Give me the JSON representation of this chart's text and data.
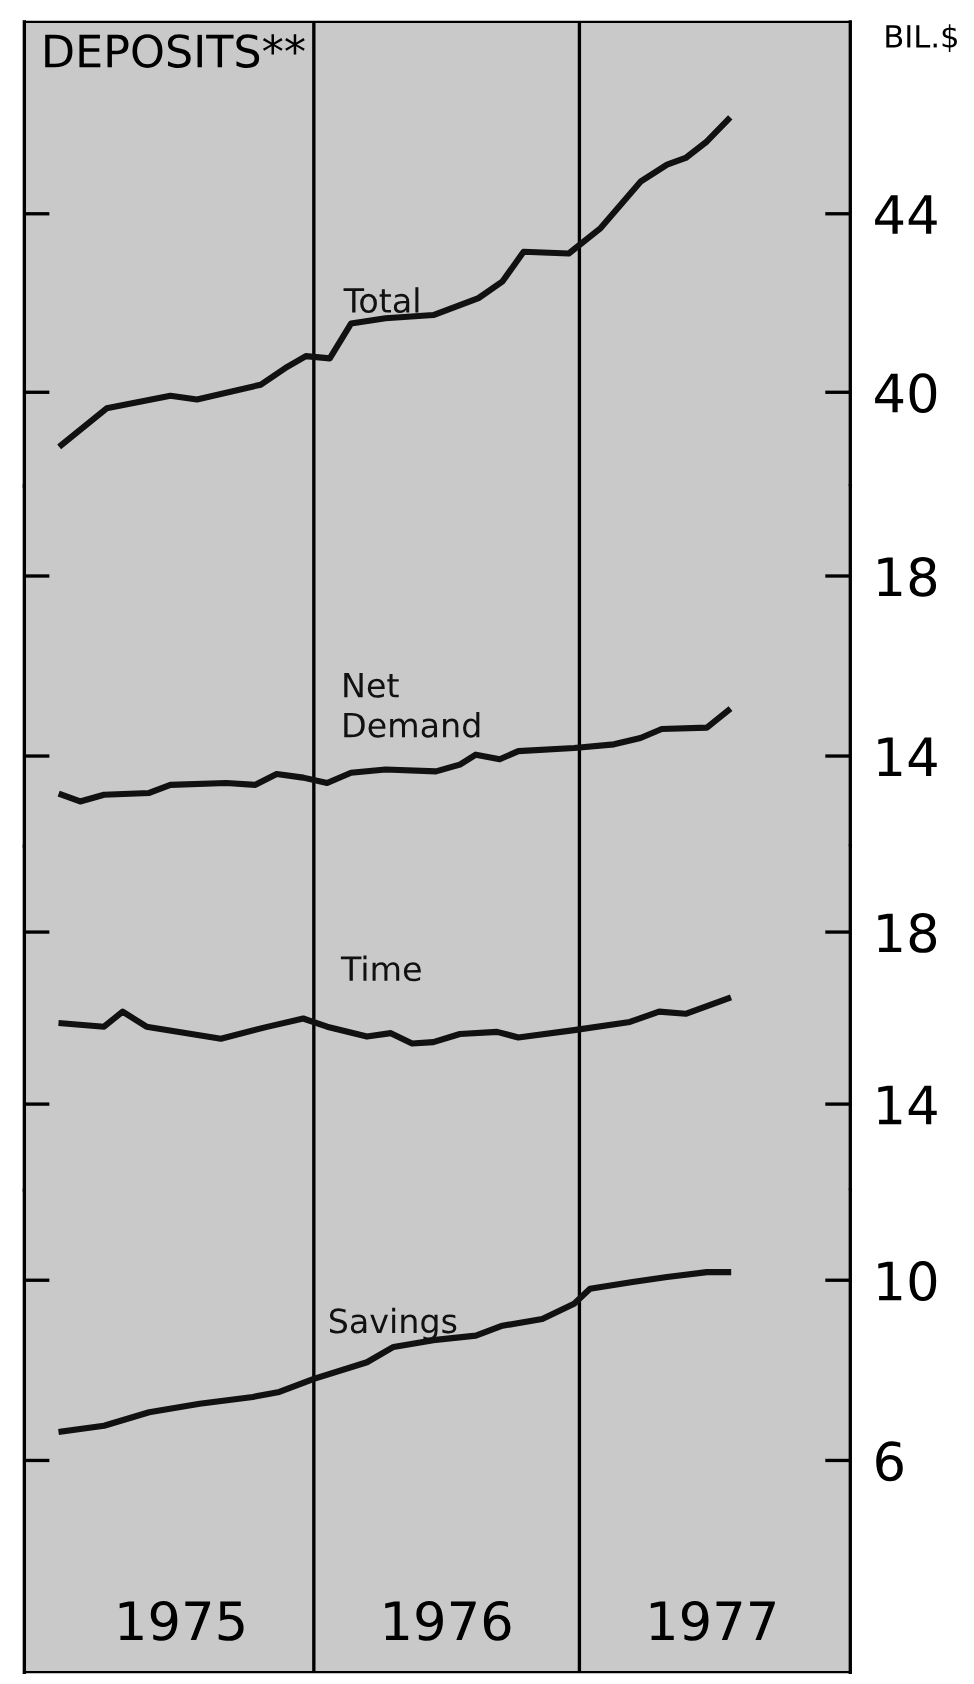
{
  "chart_data": [
    {
      "type": "line",
      "title": "DEPOSITS**",
      "ylabel": "BIL.$",
      "xlim": [
        1974.91,
        1978.02
      ],
      "ylim": [
        37.9,
        48.3
      ],
      "yticks": [
        40,
        44
      ],
      "tick_labels": "y",
      "grid": false,
      "legend": false,
      "marker": "none",
      "line_style": "solid",
      "ref_lines": [
        {
          "axis": "x",
          "value": 1976,
          "color": "#000000"
        },
        {
          "axis": "x",
          "value": 1977,
          "color": "#000000"
        }
      ],
      "series": [
        {
          "name": "Total",
          "color": "#111111",
          "x": [
            1975.05,
            1975.22,
            1975.46,
            1975.56,
            1975.8,
            1975.9,
            1975.97,
            1976.06,
            1976.14,
            1976.27,
            1976.45,
            1976.62,
            1976.71,
            1976.79,
            1976.96,
            1977.08,
            1977.23,
            1977.33,
            1977.4,
            1977.48,
            1977.56
          ],
          "values": [
            38.82,
            39.64,
            39.92,
            39.84,
            40.17,
            40.57,
            40.81,
            40.76,
            41.54,
            41.66,
            41.73,
            42.11,
            42.48,
            43.15,
            43.11,
            43.68,
            44.72,
            45.1,
            45.25,
            45.62,
            46.11
          ]
        }
      ]
    },
    {
      "type": "line",
      "xlim": [
        1974.91,
        1978.02
      ],
      "ylim": [
        12,
        20
      ],
      "yticks": [
        14,
        18
      ],
      "tick_labels": "y",
      "grid": false,
      "legend": false,
      "marker": "none",
      "line_style": "solid",
      "ref_lines": [
        {
          "axis": "x",
          "value": 1976,
          "color": "#000000"
        },
        {
          "axis": "x",
          "value": 1977,
          "color": "#000000"
        }
      ],
      "series": [
        {
          "name": "Net\nDemand",
          "color": "#111111",
          "x": [
            1975.05,
            1975.12,
            1975.21,
            1975.38,
            1975.46,
            1975.67,
            1975.78,
            1975.86,
            1975.96,
            1976.05,
            1976.14,
            1976.27,
            1976.46,
            1976.55,
            1976.61,
            1976.7,
            1976.77,
            1976.98,
            1977.13,
            1977.23,
            1977.31,
            1977.48,
            1977.56
          ],
          "values": [
            13.14,
            12.99,
            13.14,
            13.18,
            13.36,
            13.4,
            13.36,
            13.6,
            13.52,
            13.4,
            13.63,
            13.7,
            13.66,
            13.81,
            14.03,
            13.93,
            14.11,
            14.18,
            14.26,
            14.4,
            14.6,
            14.63,
            15.01
          ]
        }
      ]
    },
    {
      "type": "line",
      "xlim": [
        1974.91,
        1978.02
      ],
      "ylim": [
        12,
        20
      ],
      "yticks": [
        14,
        18
      ],
      "tick_labels": "y",
      "grid": false,
      "legend": false,
      "marker": "none",
      "line_style": "solid",
      "ref_lines": [
        {
          "axis": "x",
          "value": 1976,
          "color": "#000000"
        },
        {
          "axis": "x",
          "value": 1977,
          "color": "#000000"
        }
      ],
      "series": [
        {
          "name": "Time",
          "color": "#111111",
          "x": [
            1975.05,
            1975.21,
            1975.28,
            1975.37,
            1975.65,
            1975.82,
            1975.96,
            1976.05,
            1976.2,
            1976.29,
            1976.37,
            1976.45,
            1976.55,
            1976.69,
            1976.77,
            1976.98,
            1977.19,
            1977.3,
            1977.4,
            1977.56
          ],
          "values": [
            15.88,
            15.8,
            16.15,
            15.8,
            15.52,
            15.79,
            15.99,
            15.8,
            15.57,
            15.65,
            15.41,
            15.44,
            15.63,
            15.68,
            15.55,
            15.72,
            15.91,
            16.15,
            16.1,
            16.46
          ]
        }
      ]
    },
    {
      "type": "line",
      "xlim": [
        1974.91,
        1978.02
      ],
      "ylim": [
        1.3,
        12
      ],
      "yticks": [
        6,
        10
      ],
      "xticks": [
        {
          "value": 1975.5,
          "label": "1975"
        },
        {
          "value": 1976.5,
          "label": "1976"
        },
        {
          "value": 1977.5,
          "label": "1977"
        }
      ],
      "grid": false,
      "legend": false,
      "marker": "none",
      "line_style": "solid",
      "ref_lines": [
        {
          "axis": "x",
          "value": 1976,
          "color": "#000000"
        },
        {
          "axis": "x",
          "value": 1977,
          "color": "#000000"
        }
      ],
      "series": [
        {
          "name": "Savings",
          "color": "#111111",
          "x": [
            1975.05,
            1975.21,
            1975.38,
            1975.57,
            1975.77,
            1975.87,
            1976.0,
            1976.2,
            1976.3,
            1976.45,
            1976.61,
            1976.71,
            1976.86,
            1976.98,
            1977.04,
            1977.2,
            1977.33,
            1977.48,
            1977.56
          ],
          "values": [
            6.64,
            6.77,
            7.07,
            7.26,
            7.41,
            7.52,
            7.81,
            8.18,
            8.52,
            8.67,
            8.77,
            8.99,
            9.14,
            9.48,
            9.81,
            9.96,
            10.07,
            10.18,
            10.18
          ]
        }
      ]
    }
  ]
}
